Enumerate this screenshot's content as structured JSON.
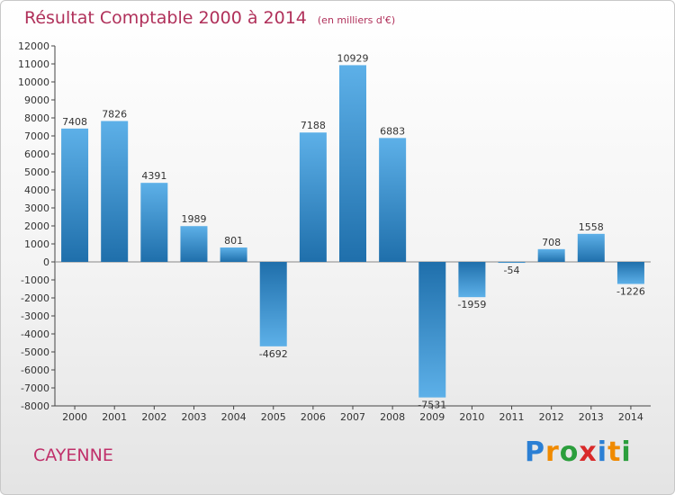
{
  "chart_data": {
    "type": "bar",
    "title": "Résultat Comptable 2000 à 2014",
    "subtitle": "(en milliers d'€)",
    "categories": [
      "2000",
      "2001",
      "2002",
      "2003",
      "2004",
      "2005",
      "2006",
      "2007",
      "2008",
      "2009",
      "2010",
      "2011",
      "2012",
      "2013",
      "2014"
    ],
    "values": [
      7408,
      7826,
      4391,
      1989,
      801,
      -4692,
      7188,
      10929,
      6883,
      -7531,
      -1959,
      -54,
      708,
      1558,
      -1226
    ],
    "value_labels": [
      "7408",
      "7826",
      "4391",
      "1989",
      "801",
      "-4692",
      "7188",
      "10929",
      "6883",
      "-7531",
      "-1959",
      "-54",
      "708",
      "1558",
      "-1226"
    ],
    "ylim": [
      -8000,
      12000
    ],
    "yticks": [
      12000,
      11000,
      10000,
      9000,
      8000,
      7000,
      6000,
      5000,
      4000,
      3000,
      2000,
      1000,
      0,
      -1000,
      -2000,
      -3000,
      -4000,
      -5000,
      -6000,
      -7000,
      -8000
    ],
    "ytick_labels": [
      "12000",
      "11000",
      "10000",
      "9000",
      "8000",
      "7000",
      "6000",
      "5000",
      "4000",
      "3000",
      "2000",
      "1000",
      "0",
      "-1000",
      "-2000",
      "-3000",
      "-4000",
      "-5000",
      "-6000",
      "-7000",
      "-8000"
    ],
    "grid": false,
    "xlabel": "",
    "ylabel": "",
    "colors": {
      "bar_dark": "#1f6fab",
      "bar_light": "#5db0e8",
      "axis": "#444444",
      "title": "#b0305a"
    }
  },
  "footer": {
    "city": "CAYENNE",
    "brand_letters": [
      "P",
      "r",
      "o",
      "x",
      "i",
      "t",
      "i"
    ],
    "brand_colors": [
      "#2b7fd4",
      "#f08a00",
      "#2b9e3c",
      "#d92a2a",
      "#2b7fd4",
      "#f08a00",
      "#2b9e3c"
    ]
  }
}
